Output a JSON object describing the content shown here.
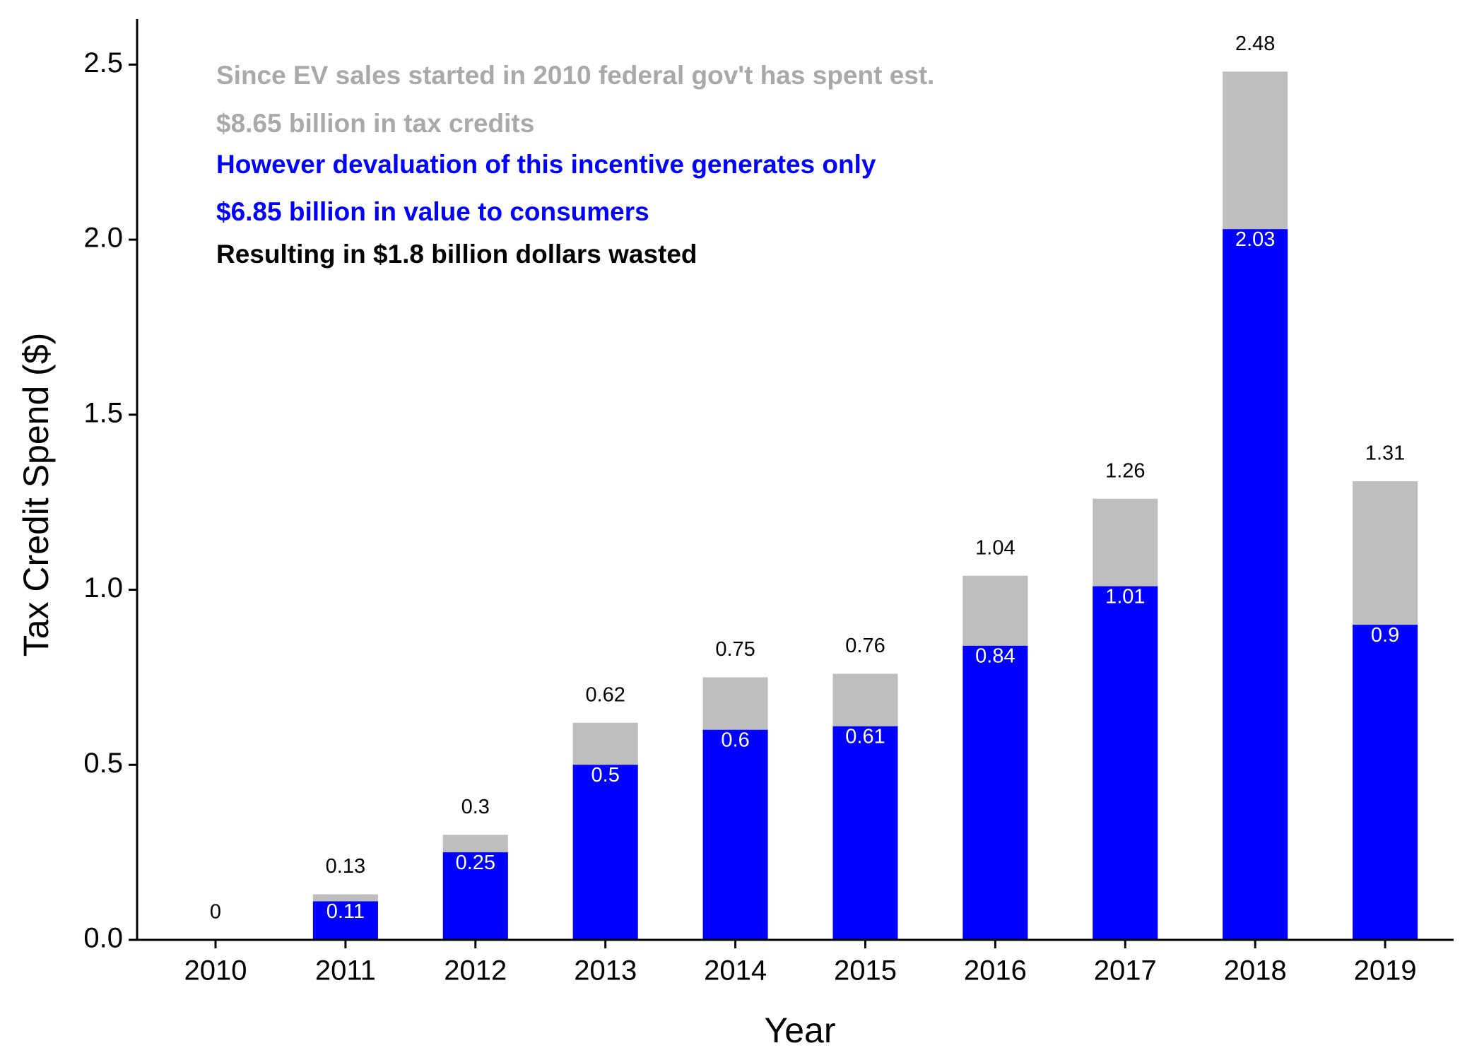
{
  "chart_data": {
    "type": "overlay-bar",
    "x_label": "Year",
    "y_label": "Tax Credit Spend ($)",
    "categories": [
      "2010",
      "2011",
      "2012",
      "2013",
      "2014",
      "2015",
      "2016",
      "2017",
      "2018",
      "2019"
    ],
    "series": [
      {
        "color": "#bebebe",
        "label_color": "#000000",
        "values": [
          0,
          0.13,
          0.3,
          0.62,
          0.75,
          0.76,
          1.04,
          1.26,
          2.48,
          1.31
        ]
      },
      {
        "color": "#0000ff",
        "label_color": "#ffffff",
        "values": [
          null,
          0.11,
          0.25,
          0.5,
          0.6,
          0.61,
          0.84,
          1.01,
          2.03,
          0.9
        ]
      }
    ],
    "ylim": [
      0,
      2.63
    ],
    "yticks": [
      {
        "value": 0,
        "label": "0.0"
      },
      0.5,
      {
        "value": 1,
        "label": "1.0"
      },
      1.5,
      {
        "value": 2,
        "label": "2.0"
      },
      2.5
    ],
    "annotations": [
      {
        "text": "Since EV sales started in 2010 federal gov't has spent est.",
        "color": "#a9a9a9"
      },
      {
        "text": "$8.65 billion in tax credits",
        "color": "#a9a9a9"
      },
      {
        "text": "However devaluation of this incentive generates only",
        "color": "#0000ff"
      },
      {
        "text": "$6.85 billion in value to consumers",
        "color": "#0000ff"
      },
      {
        "text": "Resulting in $1.8 billion dollars wasted",
        "color": "#000000"
      }
    ]
  }
}
